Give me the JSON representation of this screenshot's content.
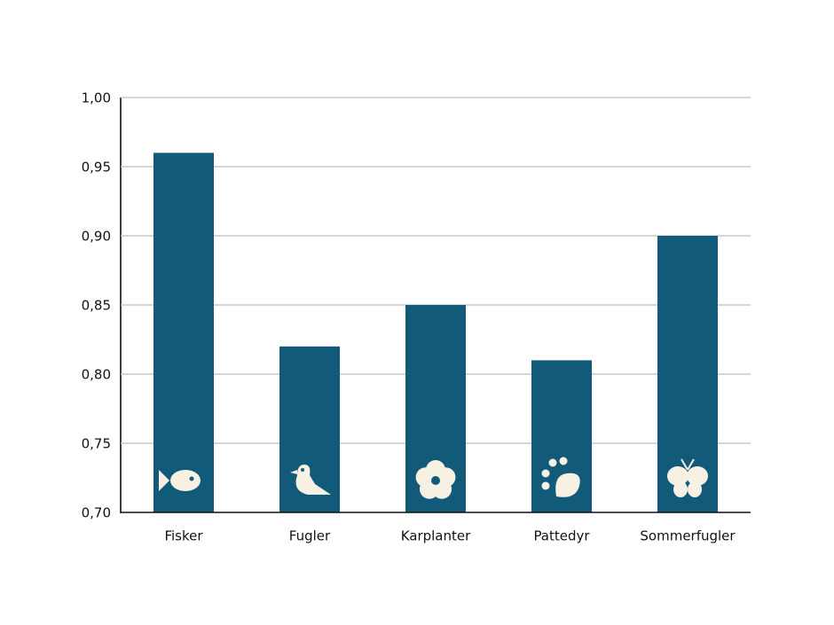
{
  "chart_data": {
    "type": "bar",
    "categories": [
      "Fisker",
      "Fugler",
      "Karplanter",
      "Pattedyr",
      "Sommerfugler"
    ],
    "values": [
      0.96,
      0.82,
      0.85,
      0.81,
      0.9
    ],
    "color": "#115a79",
    "ylim": [
      0.7,
      1.0
    ],
    "yticks": [
      {
        "value": 0.7,
        "label": "0,70"
      },
      {
        "value": 0.75,
        "label": "0,75"
      },
      {
        "value": 0.8,
        "label": "0,80"
      },
      {
        "value": 0.85,
        "label": "0,85"
      },
      {
        "value": 0.9,
        "label": "0,90"
      },
      {
        "value": 0.95,
        "label": "0,95"
      },
      {
        "value": 1.0,
        "label": "1,00"
      }
    ],
    "grid": true
  }
}
